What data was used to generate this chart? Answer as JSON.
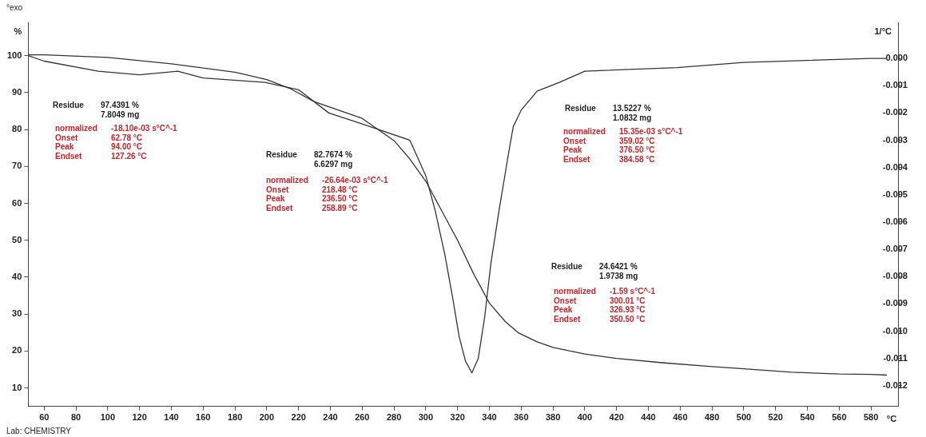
{
  "chart_data": {
    "type": "line",
    "xlabel": "°C",
    "ylabel": "%",
    "y2label": "1/°C",
    "xlim": [
      50,
      597
    ],
    "xticks": [
      60,
      80,
      100,
      120,
      140,
      160,
      180,
      200,
      220,
      240,
      260,
      280,
      300,
      320,
      340,
      360,
      380,
      400,
      420,
      440,
      460,
      480,
      500,
      520,
      540,
      560,
      580
    ],
    "ylim": [
      5,
      109
    ],
    "yticks": [
      10,
      20,
      30,
      40,
      50,
      60,
      70,
      80,
      90,
      100
    ],
    "y2lim": [
      -0.01276,
      0.00132
    ],
    "y2ticks": [
      {
        "value": 0,
        "label": "0.000"
      },
      {
        "value": -0.001,
        "label": "-0.001"
      },
      {
        "value": -0.002,
        "label": "-0.002"
      },
      {
        "value": -0.003,
        "label": "-0.003"
      },
      {
        "value": -0.004,
        "label": "-0.004"
      },
      {
        "value": -0.005,
        "label": "-0.005"
      },
      {
        "value": -0.006,
        "label": "-0.006"
      },
      {
        "value": -0.007,
        "label": "-0.007"
      },
      {
        "value": -0.008,
        "label": "-0.008"
      },
      {
        "value": -0.009,
        "label": "-0.009"
      },
      {
        "value": -0.01,
        "label": "-0.010"
      },
      {
        "value": -0.011,
        "label": "-0.011"
      },
      {
        "value": -0.012,
        "label": "-0.012"
      }
    ],
    "grid": false,
    "legend": false,
    "marker": "none",
    "line_style": "solid",
    "series": [
      {
        "color": "#333333",
        "x": [
          50,
          60,
          100,
          140,
          180,
          200,
          215,
          230,
          260,
          280,
          290,
          300,
          310,
          320,
          330,
          340,
          350,
          358,
          370,
          380,
          400,
          420,
          450,
          480,
          500,
          530,
          560,
          580,
          590
        ],
        "values": [
          100.2,
          100.2,
          99.5,
          97.8,
          95.5,
          93.5,
          91,
          87.5,
          83,
          77,
          72,
          66,
          58,
          50,
          41,
          33,
          28,
          25,
          22.5,
          21,
          19.2,
          18,
          16.8,
          15.8,
          15.2,
          14.3,
          13.8,
          13.7,
          13.5
        ]
      },
      {
        "color": "#333333",
        "axis": "y2",
        "x": [
          50,
          60,
          94,
          120,
          144,
          160,
          199,
          220,
          239,
          260,
          290,
          300,
          306,
          312,
          317,
          321,
          325,
          329,
          333,
          337,
          341,
          346,
          350,
          352,
          355,
          360,
          370,
          384,
          400,
          458,
          500,
          580,
          590
        ],
        "values": [
          0.0001,
          -0.0001,
          -0.00047,
          -0.0006,
          -0.00047,
          -0.00072,
          -0.00088,
          -0.00115,
          -0.002,
          -0.0024,
          -0.003,
          -0.0043,
          -0.0056,
          -0.0072,
          -0.0088,
          -0.0102,
          -0.0111,
          -0.01153,
          -0.011,
          -0.0095,
          -0.0075,
          -0.0056,
          -0.0042,
          -0.0035,
          -0.0025,
          -0.0019,
          -0.0012,
          -0.00088,
          -0.00047,
          -0.00034,
          -0.00015,
          0,
          0
        ]
      }
    ],
    "annotations": [
      "°exo",
      "Lab: CHEMISTRY",
      "Residue\t97.4391 %\n\t7.8049 mg",
      "normalized\t-18.10e-03 s°C^-1\nOnset\t62.78 °C\nPeak\t94.00 °C\nEndset\t127.26 °C",
      "Residue\t82.7674 %\n\t6.6297 mg",
      "normalized\t-26.64e-03 s°C^-1\nOnset\t218.48 °C\nPeak\t236.50 °C\nEndset\t258.89 °C",
      "Residue\t13.5227 %\n\t1.0832 mg",
      "normalized\t15.35e-03 s°C^-1\nOnset\t359.02 °C\nPeak\t376.50 °C\nEndset\t384.58 °C",
      "Residue\t24.6421 %\n\t1.9738 mg",
      "normalized\t-1.59 s°C^-1\nOnset\t300.01 °C\nPeak\t326.93 °C\nEndset\t350.50 °C"
    ]
  }
}
